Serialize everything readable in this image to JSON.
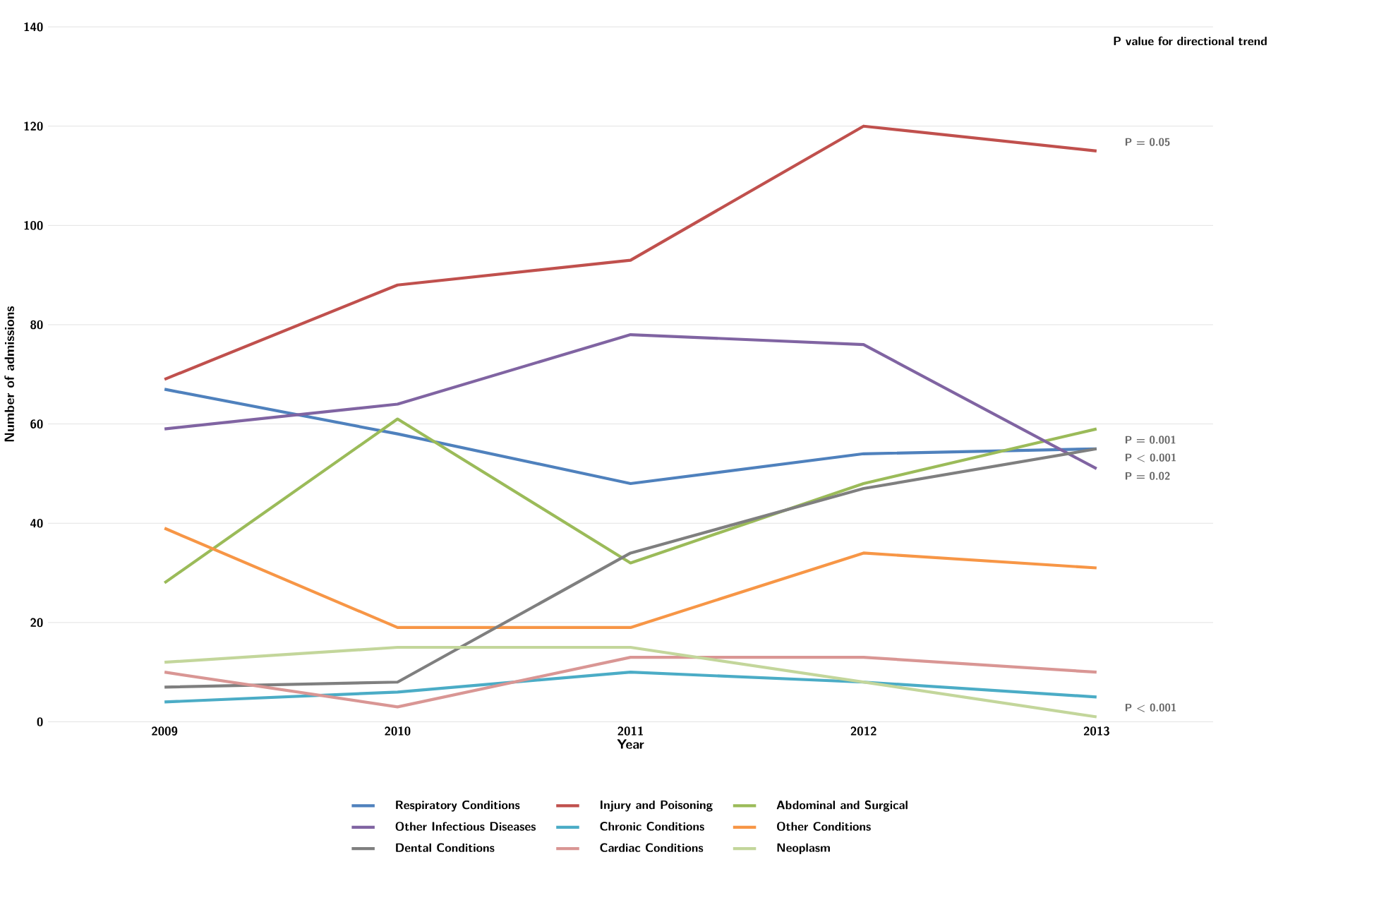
{
  "chart_data": {
    "type": "line",
    "xlabel": "Year",
    "ylabel": "Number of admissions",
    "categories": [
      "2009",
      "2010",
      "2011",
      "2012",
      "2013"
    ],
    "series": [
      {
        "name": "Respiratory Conditions",
        "color": "#4f81bd",
        "values": [
          67,
          58,
          48,
          54,
          55
        ]
      },
      {
        "name": "Injury and Poisoning",
        "color": "#c0504d",
        "values": [
          69,
          88,
          93,
          120,
          115
        ]
      },
      {
        "name": "Abdominal and Surgical",
        "color": "#9bbb59",
        "values": [
          28,
          61,
          32,
          48,
          59
        ]
      },
      {
        "name": "Other Infectious Diseases",
        "color": "#8064a2",
        "values": [
          59,
          64,
          78,
          76,
          51
        ]
      },
      {
        "name": "Chronic Conditions",
        "color": "#4bacc6",
        "values": [
          4,
          6,
          10,
          8,
          5
        ]
      },
      {
        "name": "Other Conditions",
        "color": "#f79646",
        "values": [
          39,
          19,
          19,
          34,
          31
        ]
      },
      {
        "name": "Dental Conditions",
        "color": "#7f7f7f",
        "values": [
          7,
          8,
          34,
          47,
          55
        ]
      },
      {
        "name": "Cardiac Conditions",
        "color": "#d99694",
        "values": [
          10,
          3,
          13,
          13,
          10
        ]
      },
      {
        "name": "Neoplasm",
        "color": "#c3d69b",
        "values": [
          12,
          15,
          15,
          8,
          1
        ]
      }
    ],
    "ylim": [
      0,
      140
    ],
    "yticks": [
      0,
      20,
      40,
      60,
      80,
      100,
      120,
      140
    ],
    "grid": "y",
    "legend": "bottom",
    "marker": "none",
    "line_style": "solid",
    "annotations": [
      "P value for directional trend",
      {
        "text": "P = 0.05",
        "x": "2013",
        "y": 115
      },
      {
        "text": "P = 0.001",
        "x": "2013",
        "y": 55
      },
      {
        "text": "P < 0.001",
        "x": "2013",
        "y": 55
      },
      {
        "text": "P = 0.02",
        "x": "2013",
        "y": 51
      },
      {
        "text": "P < 0.001",
        "x": "2013",
        "y": 1
      }
    ]
  }
}
